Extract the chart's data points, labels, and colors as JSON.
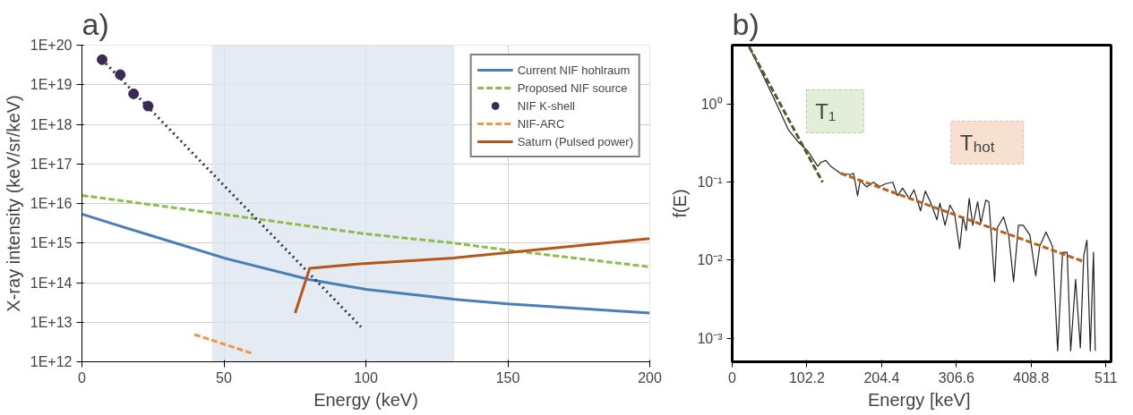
{
  "chart_data": [
    {
      "type": "line",
      "title": "a)",
      "xlabel": "Energy (keV)",
      "ylabel": "X-ray intensity (keV/sr/keV)",
      "log": "y",
      "grid": true,
      "legend": "top right",
      "xlim": [
        0,
        200
      ],
      "xticks": [
        0,
        50,
        100,
        150,
        200
      ],
      "ylim": [
        1000000000000.0,
        1e+20
      ],
      "yticks": [
        {
          "value": 1000000000000.0,
          "label": "1E+12"
        },
        {
          "value": 10000000000000.0,
          "label": "1E+13"
        },
        {
          "value": 100000000000000.0,
          "label": "1E+14"
        },
        {
          "value": 1000000000000000.0,
          "label": "1E+15"
        },
        {
          "value": 1e+16,
          "label": "1E+16"
        },
        {
          "value": 1e+17,
          "label": "1E+17"
        },
        {
          "value": 1e+18,
          "label": "1E+18"
        },
        {
          "value": 1e+19,
          "label": "1E+19"
        },
        {
          "value": 1e+20,
          "label": "1E+20"
        }
      ],
      "bands": [
        {
          "axis": "x",
          "from": 46,
          "to": 131,
          "color": "#dfe6f0"
        }
      ],
      "series": [
        {
          "name": "Current NIF hohlraum",
          "color": "#4a7ebb",
          "line_style": "solid",
          "x": [
            0,
            10,
            25,
            50,
            80,
            100,
            131,
            150,
            200
          ],
          "values": [
            5400000000000000.0,
            3200000000000000.0,
            1500000000000000.0,
            420000000000000.0,
            120000000000000.0,
            68000000000000.0,
            38000000000000.0,
            29000000000000.0,
            17000000000000.0
          ]
        },
        {
          "name": "Proposed NIF source",
          "color": "#8fbc4f",
          "line_style": "dashed",
          "x": [
            0,
            50,
            100,
            131,
            150,
            200
          ],
          "values": [
            1.6e+16,
            5300000000000000.0,
            1700000000000000.0,
            1000000000000000.0,
            660000000000000.0,
            250000000000000.0
          ]
        },
        {
          "name": "NIF K-shell",
          "type": "scatter",
          "marker": "circle",
          "color": "#3b2a55",
          "x": [
            7.1,
            13.5,
            18.2,
            23.3
          ],
          "values": [
            4.3e+19,
            1.8e+19,
            5.9e+18,
            2.9e+18
          ]
        },
        {
          "color": "#333333",
          "line_style": "dotted",
          "x": [
            7.1,
            98.3
          ],
          "values": [
            4.3e+19,
            7600000000000.0
          ]
        },
        {
          "name": "NIF-ARC",
          "color": "#f0964a",
          "line_style": "dashed",
          "x": [
            39.6,
            60.3
          ],
          "values": [
            4900000000000.0,
            1600000000000.0
          ]
        },
        {
          "name": "Saturn (Pulsed power)",
          "color": "#b5561b",
          "line_style": "solid",
          "x": [
            75.1,
            80.2,
            98,
            131,
            200
          ],
          "values": [
            17000000000000.0,
            230000000000000.0,
            300000000000000.0,
            420000000000000.0,
            1300000000000000.0
          ]
        }
      ]
    },
    {
      "type": "line",
      "title": "b)",
      "xlabel": "Energy  [keV]",
      "ylabel": "f(E)",
      "log": "y",
      "grid": false,
      "xlim": [
        0,
        518
      ],
      "xticks": [
        0,
        102.2,
        204.4,
        306.6,
        408.8,
        511
      ],
      "ylim": [
        0.0005,
        5.7
      ],
      "yticks": [
        {
          "value": 1,
          "label": "10⁰"
        },
        {
          "value": 0.1,
          "label": "10⁻¹"
        },
        {
          "value": 0.01,
          "label": "10⁻²"
        },
        {
          "value": 0.001,
          "label": "10⁻³"
        }
      ],
      "annotations": [
        "T₁",
        "T$_{hot}$"
      ],
      "series": [
        {
          "color": "#222222",
          "line_style": "solid",
          "x": [
            23.2,
            54.4,
            76.8,
            90,
            103.5,
            117,
            121.4,
            128,
            134.8,
            148,
            161.6,
            166,
            171.4,
            175,
            184,
            193,
            201.7,
            210.6,
            219.6,
            226,
            233,
            242,
            248.6,
            257.5,
            264,
            271,
            280,
            284,
            291,
            297.7,
            304,
            311,
            315.5,
            320,
            324,
            329,
            335.6,
            340,
            346.8,
            351,
            358.8,
            362.4,
            371,
            378,
            384.7,
            391.4,
            398,
            407,
            415,
            420.4,
            429,
            438,
            445,
            451.7,
            458,
            462.8,
            469.5,
            476,
            480.7,
            485,
            489.6,
            494,
            496.4
          ],
          "values": [
            5.45,
            1.34,
            0.47,
            0.33,
            0.25,
            0.16,
            0.18,
            0.19,
            0.16,
            0.13,
            0.125,
            0.13,
            0.067,
            0.105,
            0.087,
            0.1,
            0.088,
            0.096,
            0.1,
            0.067,
            0.084,
            0.062,
            0.08,
            0.043,
            0.077,
            0.056,
            0.033,
            0.054,
            0.028,
            0.051,
            0.04,
            0.014,
            0.036,
            0.024,
            0.062,
            0.028,
            0.056,
            0.03,
            0.059,
            0.056,
            0.0053,
            0.026,
            0.036,
            0.021,
            0.0053,
            0.028,
            0.028,
            0.021,
            0.0063,
            0.015,
            0.023,
            0.015,
            0.00069,
            0.0126,
            0.0126,
            0.00069,
            0.0057,
            0.00076,
            0.0115,
            0.018,
            0.00069,
            0.0126,
            0.00069
          ]
        },
        {
          "color": "#4a5e2a",
          "line_style": "dashed",
          "x": [
            23.2,
            123.6
          ],
          "values": [
            5.45,
            0.1
          ]
        },
        {
          "color": "#b5621d",
          "line_style": "dashed",
          "x": [
            148.2,
            478.4
          ],
          "values": [
            0.13,
            0.0098
          ]
        }
      ]
    }
  ]
}
